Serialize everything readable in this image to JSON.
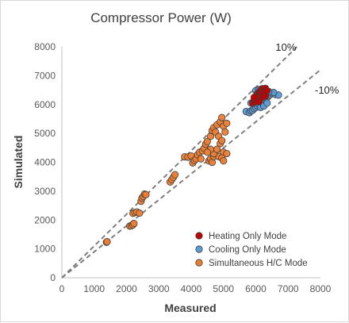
{
  "chart_data": {
    "type": "scatter",
    "title": "Compressor Power (W)",
    "xlabel": "Measured",
    "ylabel": "Simulated",
    "xlim": [
      0,
      8000
    ],
    "ylim": [
      0,
      8000
    ],
    "xticks": [
      0,
      1000,
      2000,
      3000,
      4000,
      5000,
      6000,
      7000,
      8000
    ],
    "yticks": [
      0,
      1000,
      2000,
      3000,
      4000,
      5000,
      6000,
      7000,
      8000
    ],
    "grid": false,
    "legend_position": "bottom-right",
    "reference_lines": [
      {
        "label": "10%",
        "slope": 1.1
      },
      {
        "label": "-10%",
        "slope": 0.9
      }
    ],
    "series": [
      {
        "name": "Simultaneous H/C Mode",
        "color": "#ED7D31",
        "points": [
          [
            1380,
            1230
          ],
          [
            1400,
            1250
          ],
          [
            2100,
            1790
          ],
          [
            2150,
            1800
          ],
          [
            2200,
            1830
          ],
          [
            2230,
            1880
          ],
          [
            2200,
            2230
          ],
          [
            2260,
            2260
          ],
          [
            2320,
            2280
          ],
          [
            2400,
            2240
          ],
          [
            2450,
            2650
          ],
          [
            2480,
            2760
          ],
          [
            2520,
            2820
          ],
          [
            2560,
            2900
          ],
          [
            2600,
            2880
          ],
          [
            3350,
            3320
          ],
          [
            3400,
            3400
          ],
          [
            3450,
            3480
          ],
          [
            3500,
            3570
          ],
          [
            3800,
            4190
          ],
          [
            3900,
            4180
          ],
          [
            4000,
            4220
          ],
          [
            4050,
            3980
          ],
          [
            4100,
            4060
          ],
          [
            4150,
            4120
          ],
          [
            4200,
            4260
          ],
          [
            4260,
            4350
          ],
          [
            4300,
            4120
          ],
          [
            4350,
            4400
          ],
          [
            4400,
            4480
          ],
          [
            4450,
            4630
          ],
          [
            4500,
            4720
          ],
          [
            4550,
            4050
          ],
          [
            4600,
            4120
          ],
          [
            4650,
            4000
          ],
          [
            4700,
            4200
          ],
          [
            4600,
            4900
          ],
          [
            4650,
            5100
          ],
          [
            4700,
            5200
          ],
          [
            4750,
            5050
          ],
          [
            4800,
            5300
          ],
          [
            4850,
            4900
          ],
          [
            4900,
            5400
          ],
          [
            4950,
            5550
          ],
          [
            5000,
            5250
          ],
          [
            5050,
            5050
          ],
          [
            5100,
            5350
          ],
          [
            4900,
            4650
          ],
          [
            4950,
            4750
          ],
          [
            5000,
            4350
          ],
          [
            5100,
            4300
          ],
          [
            4850,
            4200
          ],
          [
            4950,
            4150
          ],
          [
            5000,
            4050
          ],
          [
            4700,
            4300
          ],
          [
            4600,
            4450
          ],
          [
            4500,
            4350
          ],
          [
            4800,
            4450
          ]
        ]
      },
      {
        "name": "Cooling Only Mode",
        "color": "#5B9BD5",
        "points": [
          [
            5700,
            5760
          ],
          [
            5800,
            5720
          ],
          [
            5850,
            5780
          ],
          [
            5900,
            5800
          ],
          [
            5950,
            5860
          ],
          [
            6000,
            5900
          ],
          [
            6050,
            5950
          ],
          [
            6100,
            6000
          ],
          [
            6150,
            6050
          ],
          [
            6200,
            6100
          ],
          [
            6250,
            6150
          ],
          [
            6300,
            6200
          ],
          [
            6350,
            6250
          ],
          [
            6400,
            6300
          ],
          [
            6450,
            6350
          ],
          [
            6500,
            6400
          ],
          [
            6600,
            6350
          ],
          [
            6700,
            6330
          ],
          [
            6550,
            6420
          ],
          [
            6150,
            5900
          ],
          [
            6250,
            5950
          ],
          [
            6350,
            6050
          ],
          [
            5850,
            6050
          ],
          [
            6000,
            6480
          ],
          [
            6100,
            6520
          ],
          [
            6200,
            6450
          ],
          [
            6300,
            6500
          ],
          [
            6400,
            6450
          ],
          [
            5980,
            6150
          ],
          [
            6050,
            6380
          ]
        ]
      },
      {
        "name": "Heating Only Mode",
        "color": "#C00000",
        "points": [
          [
            5900,
            6050
          ],
          [
            5950,
            6150
          ],
          [
            6000,
            6250
          ],
          [
            6050,
            6350
          ],
          [
            6100,
            6420
          ],
          [
            6150,
            6500
          ],
          [
            6200,
            6550
          ],
          [
            6250,
            6520
          ],
          [
            6300,
            6560
          ],
          [
            6050,
            6150
          ],
          [
            6100,
            6250
          ],
          [
            6150,
            6320
          ],
          [
            6200,
            6380
          ],
          [
            6250,
            6420
          ],
          [
            6000,
            6100
          ],
          [
            6100,
            6100
          ],
          [
            6200,
            6250
          ],
          [
            6300,
            6300
          ],
          [
            6350,
            6480
          ],
          [
            5950,
            6250
          ]
        ]
      }
    ],
    "legend": [
      {
        "label": "Heating Only Mode",
        "color": "#C00000"
      },
      {
        "label": "Cooling Only Mode",
        "color": "#5B9BD5"
      },
      {
        "label": "Simultaneous H/C Mode",
        "color": "#ED7D31"
      }
    ]
  }
}
